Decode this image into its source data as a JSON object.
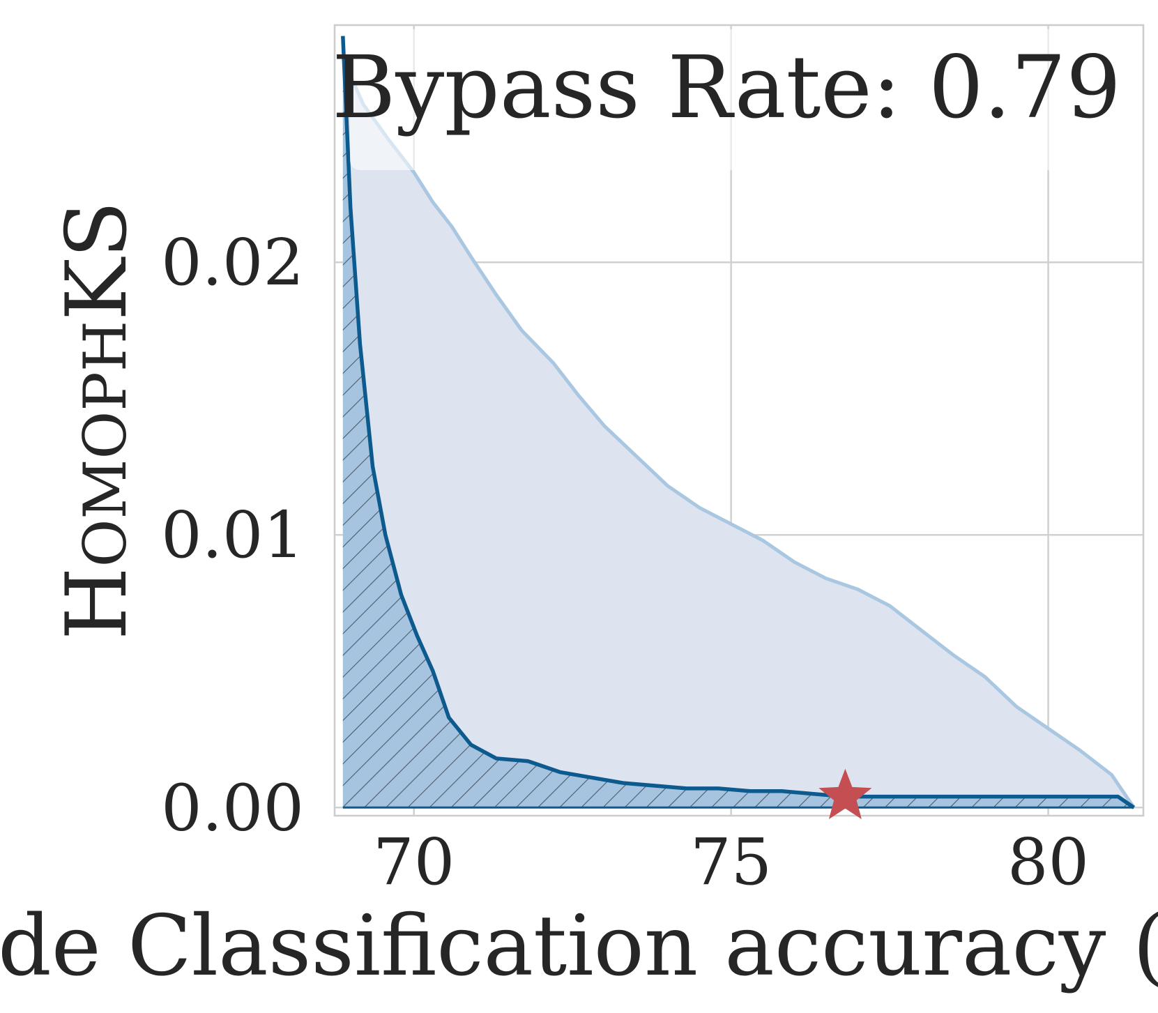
{
  "chart_data": {
    "type": "area",
    "xlabel": "Node Classification accuracy (%)",
    "ylabel": "HomophKS",
    "annotation": "Bypass Rate: 0.79",
    "xlim": [
      68.75,
      81.5
    ],
    "ylim": [
      -0.0003,
      0.0287
    ],
    "xticks": [
      70,
      75,
      80
    ],
    "xtick_labels": [
      "70",
      "75",
      "80"
    ],
    "yticks": [
      0.0,
      0.01,
      0.02
    ],
    "ytick_labels": [
      "0.00",
      "0.01",
      "0.02"
    ],
    "grid": true,
    "series": [
      {
        "role": "upper",
        "x": [
          68.88,
          69.2,
          69.6,
          70.0,
          70.3,
          70.6,
          70.9,
          71.3,
          71.7,
          72.2,
          72.6,
          73.0,
          73.5,
          74.0,
          74.5,
          75.0,
          75.5,
          76.0,
          76.5,
          77.0,
          77.5,
          78.0,
          78.5,
          79.0,
          79.5,
          80.0,
          80.5,
          81.0,
          81.35
        ],
        "y": [
          0.0275,
          0.0258,
          0.0245,
          0.0233,
          0.0222,
          0.0213,
          0.0202,
          0.0188,
          0.0175,
          0.0163,
          0.0151,
          0.014,
          0.0129,
          0.0118,
          0.011,
          0.0104,
          0.0098,
          0.009,
          0.0084,
          0.008,
          0.0074,
          0.0065,
          0.0056,
          0.0048,
          0.0037,
          0.0029,
          0.0021,
          0.0012,
          0.0
        ]
      },
      {
        "role": "lower",
        "x": [
          68.88,
          69.0,
          69.15,
          69.35,
          69.55,
          69.8,
          70.05,
          70.3,
          70.55,
          70.9,
          71.3,
          71.8,
          72.3,
          72.8,
          73.3,
          73.8,
          74.3,
          74.8,
          75.3,
          75.8,
          76.3,
          76.8,
          77.5,
          78.5,
          79.5,
          80.5,
          81.1,
          81.35
        ],
        "y": [
          0.0283,
          0.022,
          0.017,
          0.0125,
          0.01,
          0.0078,
          0.0063,
          0.005,
          0.0033,
          0.0023,
          0.0018,
          0.0017,
          0.0013,
          0.0011,
          0.0009,
          0.0008,
          0.0007,
          0.0007,
          0.0006,
          0.0006,
          0.0005,
          0.0004,
          0.0004,
          0.0004,
          0.0004,
          0.0004,
          0.0004,
          0.0
        ]
      }
    ],
    "marker": {
      "shape": "star",
      "x": 76.8,
      "y": 0.0004,
      "color": "#c44e52"
    },
    "colors": {
      "upper_fill": "#dde4f0",
      "upper_line": "#a9c7e1",
      "lower_fill": "#a6c4df",
      "lower_line": "#0d5a8e",
      "hatch": "#4b5a6a",
      "grid": "#d0d0d0",
      "spine": "#cccccc"
    }
  }
}
